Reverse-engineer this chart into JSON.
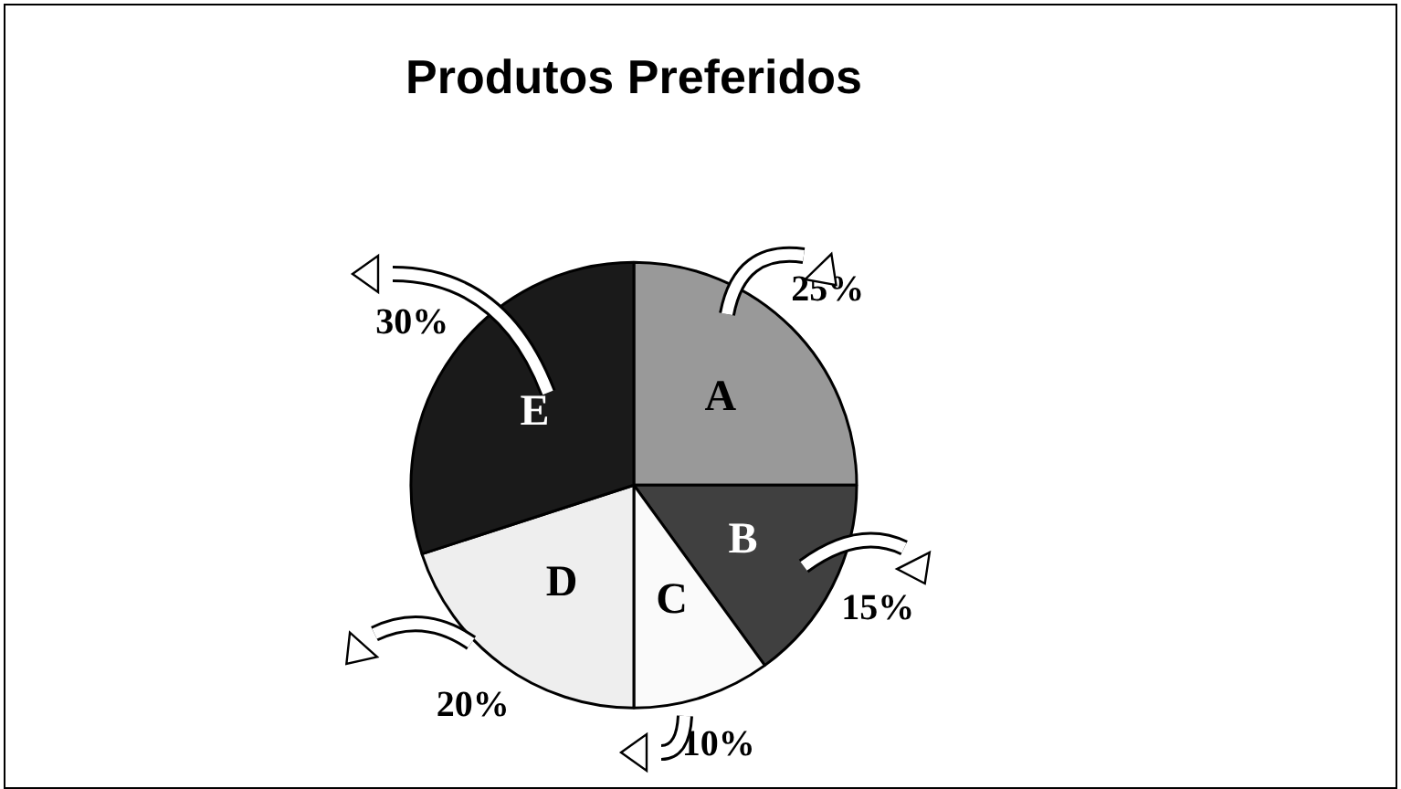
{
  "chart_data": {
    "type": "pie",
    "title": "Produtos Preferidos",
    "categories": [
      "A",
      "B",
      "C",
      "D",
      "E"
    ],
    "values": [
      25,
      15,
      10,
      20,
      30
    ],
    "colors": [
      "#999999",
      "#404040",
      "#fafafa",
      "#eeeeee",
      "#1a1a1a"
    ],
    "value_labels": [
      "25%",
      "15%",
      "10%",
      "20%",
      "30%"
    ],
    "legend": false
  }
}
